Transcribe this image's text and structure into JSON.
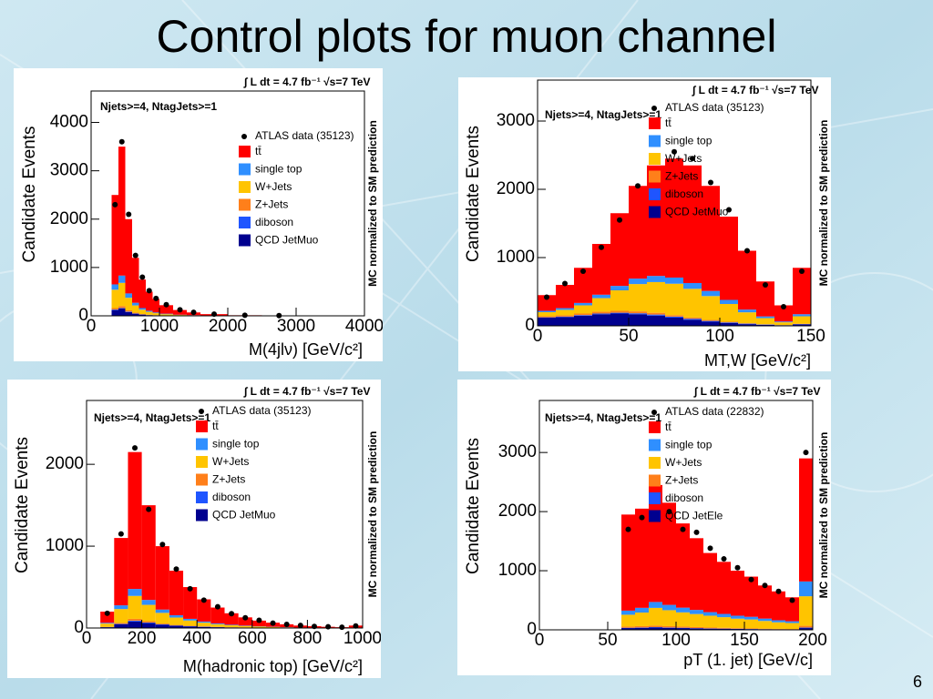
{
  "title": "Control plots for muon channel",
  "page_number": "6",
  "chart_data": [
    {
      "type": "histogram",
      "cut_label": "Njets>=4, NtagJets>=1",
      "luminosity": "∫ L dt = 4.7 fb⁻¹  √s=7 TeV",
      "side_label": "MC normalized to SM prediction",
      "ylabel": "Candidate Events",
      "xlabel": "M(4jlν) [GeV/c²]",
      "xlim": [
        0,
        4000
      ],
      "xticks": [
        0,
        1000,
        2000,
        3000,
        4000
      ],
      "ylim": [
        0,
        4650
      ],
      "yticks": [
        0,
        1000,
        2000,
        3000,
        4000
      ],
      "bins": [
        300,
        400,
        500,
        600,
        700,
        800,
        900,
        1000,
        1200,
        1400,
        1600,
        2000,
        2500,
        3000
      ],
      "points": {
        "name": "ATLAS data (35123)",
        "color": "#000000",
        "values": [
          2300,
          3600,
          2100,
          1250,
          800,
          520,
          360,
          230,
          125,
          72,
          36,
          12,
          4
        ]
      },
      "series": [
        {
          "name": "tt̄",
          "color": "#ff0000",
          "values": [
            1850,
            2668,
            1537,
            930,
            590,
            395,
            280,
            176,
            97,
            56,
            28,
            10,
            3
          ]
        },
        {
          "name": "single top",
          "color": "#2f8fff",
          "values": [
            110,
            150,
            90,
            55,
            33,
            22,
            15,
            10,
            5,
            3,
            2,
            1,
            0
          ]
        },
        {
          "name": "W+Jets",
          "color": "#ffc400",
          "values": [
            380,
            480,
            260,
            150,
            90,
            60,
            40,
            25,
            14,
            8,
            4,
            1,
            0
          ]
        },
        {
          "name": "Z+Jets",
          "color": "#ff7f1a",
          "values": [
            30,
            40,
            25,
            15,
            9,
            6,
            4,
            2,
            1,
            1,
            0,
            0,
            0
          ]
        },
        {
          "name": "diboson",
          "color": "#1f55ff",
          "values": [
            10,
            12,
            8,
            5,
            3,
            2,
            1,
            1,
            0,
            0,
            0,
            0,
            0
          ]
        },
        {
          "name": "QCD JetMuo",
          "color": "#00008f",
          "values": [
            120,
            150,
            80,
            45,
            25,
            15,
            10,
            6,
            3,
            2,
            1,
            0,
            0
          ]
        }
      ]
    },
    {
      "type": "histogram",
      "cut_label": "Njets>=4, NtagJets>=1",
      "luminosity": "∫ L dt = 4.7 fb⁻¹  √s=7 TeV",
      "side_label": "MC normalized to SM prediction",
      "ylabel": "Candidate Events",
      "xlabel": "MT,W [GeV/c²]",
      "xlim": [
        0,
        150
      ],
      "xticks": [
        0,
        50,
        100,
        150
      ],
      "ylim": [
        0,
        3600
      ],
      "yticks": [
        0,
        1000,
        2000,
        3000
      ],
      "bins": [
        0,
        10,
        20,
        30,
        40,
        50,
        60,
        70,
        80,
        90,
        100,
        110,
        120,
        130,
        140,
        150
      ],
      "points": {
        "name": "ATLAS data (35123)",
        "color": "#000000",
        "values": [
          420,
          620,
          800,
          1150,
          1550,
          2050,
          2450,
          2550,
          2450,
          2100,
          1700,
          1100,
          600,
          280,
          800
        ]
      },
      "series": [
        {
          "name": "tt̄",
          "color": "#ff0000",
          "values": [
            230,
            341,
            515,
            744,
            1065,
            1358,
            1619,
            1743,
            1723,
            1539,
            1220,
            862,
            512,
            236,
            680
          ]
        },
        {
          "name": "single top",
          "color": "#2f8fff",
          "values": [
            20,
            25,
            35,
            50,
            65,
            80,
            90,
            90,
            85,
            75,
            60,
            40,
            25,
            12,
            30
          ]
        },
        {
          "name": "W+Jets",
          "color": "#ffc400",
          "values": [
            60,
            80,
            120,
            200,
            300,
            400,
            450,
            460,
            420,
            350,
            260,
            160,
            90,
            40,
            110
          ]
        },
        {
          "name": "Z+Jets",
          "color": "#ff7f1a",
          "values": [
            15,
            18,
            22,
            26,
            28,
            28,
            26,
            22,
            18,
            14,
            10,
            6,
            4,
            2,
            5
          ]
        },
        {
          "name": "diboson",
          "color": "#1f55ff",
          "values": [
            5,
            6,
            8,
            10,
            12,
            14,
            15,
            15,
            14,
            12,
            10,
            7,
            4,
            2,
            5
          ]
        },
        {
          "name": "QCD JetMuo",
          "color": "#00008f",
          "values": [
            120,
            130,
            150,
            170,
            180,
            170,
            150,
            120,
            90,
            60,
            40,
            25,
            15,
            8,
            20
          ]
        }
      ]
    },
    {
      "type": "histogram",
      "cut_label": "Njets>=4, NtagJets>=1",
      "luminosity": "∫ L dt = 4.7 fb⁻¹  √s=7 TeV",
      "side_label": "MC normalized to SM prediction",
      "ylabel": "Candidate Events",
      "xlabel": "M(hadronic top) [GeV/c²]",
      "xlim": [
        0,
        1000
      ],
      "xticks": [
        0,
        200,
        400,
        600,
        800,
        1000
      ],
      "ylim": [
        0,
        2780
      ],
      "yticks": [
        0,
        1000,
        2000
      ],
      "bins": [
        50,
        100,
        150,
        200,
        250,
        300,
        350,
        400,
        450,
        500,
        550,
        600,
        650,
        700,
        750,
        800,
        850,
        900,
        950,
        1000
      ],
      "points": {
        "name": "ATLAS data (35123)",
        "color": "#000000",
        "values": [
          180,
          1150,
          2200,
          1450,
          1020,
          720,
          480,
          340,
          260,
          175,
          125,
          95,
          60,
          45,
          32,
          20,
          15,
          10,
          25
        ]
      },
      "series": [
        {
          "name": "tt̄",
          "color": "#ff0000",
          "values": [
            136,
            823,
            1673,
            1157,
            775,
            544,
            388,
            271,
            194,
            140,
            101,
            69,
            50,
            35,
            24,
            17,
            11,
            9,
            24
          ]
        },
        {
          "name": "single top",
          "color": "#2f8fff",
          "values": [
            10,
            45,
            85,
            60,
            40,
            28,
            20,
            14,
            10,
            7,
            5,
            4,
            3,
            2,
            1,
            1,
            1,
            0,
            1
          ]
        },
        {
          "name": "W+Jets",
          "color": "#ffc400",
          "values": [
            40,
            170,
            280,
            200,
            130,
            90,
            65,
            45,
            32,
            23,
            17,
            12,
            8,
            6,
            4,
            3,
            2,
            1,
            4
          ]
        },
        {
          "name": "Z+Jets",
          "color": "#ff7f1a",
          "values": [
            3,
            12,
            22,
            16,
            10,
            7,
            5,
            4,
            3,
            2,
            1,
            1,
            1,
            0,
            0,
            0,
            0,
            0,
            0
          ]
        },
        {
          "name": "diboson",
          "color": "#1f55ff",
          "values": [
            1,
            5,
            10,
            7,
            5,
            3,
            2,
            2,
            1,
            1,
            1,
            0,
            0,
            0,
            0,
            0,
            0,
            0,
            0
          ]
        },
        {
          "name": "QCD JetMuo",
          "color": "#00008f",
          "values": [
            10,
            45,
            80,
            60,
            40,
            28,
            20,
            14,
            10,
            7,
            5,
            4,
            3,
            2,
            1,
            1,
            1,
            0,
            1
          ]
        }
      ]
    },
    {
      "type": "histogram",
      "cut_label": "Njets>=4, NtagJets>=1",
      "luminosity": "∫ L dt = 4.7 fb⁻¹  √s=7 TeV",
      "side_label": "MC normalized to SM prediction",
      "ylabel": "Candidate Events",
      "xlabel": "pT (1. jet) [GeV/c]",
      "xlim": [
        0,
        200
      ],
      "xticks": [
        0,
        50,
        100,
        150,
        200
      ],
      "ylim": [
        0,
        3880
      ],
      "yticks": [
        0,
        1000,
        2000,
        3000
      ],
      "bins": [
        60,
        70,
        80,
        90,
        100,
        110,
        120,
        130,
        140,
        150,
        160,
        170,
        180,
        190,
        200
      ],
      "points": {
        "name": "ATLAS data (22832)",
        "color": "#000000",
        "values": [
          1700,
          1900,
          2250,
          2000,
          1700,
          1650,
          1380,
          1200,
          1050,
          850,
          750,
          650,
          500,
          3000
        ]
      },
      "series": [
        {
          "name": "tt̄",
          "color": "#ff0000",
          "values": [
            1625,
            1678,
            1979,
            1728,
            1425,
            1213,
            1001,
            881,
            761,
            680,
            560,
            488,
            405,
            2082
          ]
        },
        {
          "name": "single top",
          "color": "#2f8fff",
          "values": [
            70,
            80,
            100,
            90,
            80,
            70,
            60,
            55,
            50,
            45,
            40,
            35,
            30,
            250
          ]
        },
        {
          "name": "W+Jets",
          "color": "#ffc400",
          "values": [
            200,
            230,
            300,
            270,
            240,
            220,
            200,
            180,
            160,
            150,
            130,
            110,
            100,
            500
          ]
        },
        {
          "name": "Z+Jets",
          "color": "#ff7f1a",
          "values": [
            20,
            22,
            25,
            22,
            20,
            18,
            15,
            13,
            11,
            10,
            8,
            7,
            6,
            30
          ]
        },
        {
          "name": "diboson",
          "color": "#1f55ff",
          "values": [
            5,
            5,
            6,
            5,
            5,
            4,
            4,
            3,
            3,
            3,
            2,
            2,
            2,
            8
          ]
        },
        {
          "name": "QCD JetEle",
          "color": "#00008f",
          "values": [
            30,
            35,
            40,
            35,
            30,
            25,
            20,
            18,
            15,
            12,
            10,
            8,
            7,
            30
          ]
        }
      ]
    }
  ]
}
